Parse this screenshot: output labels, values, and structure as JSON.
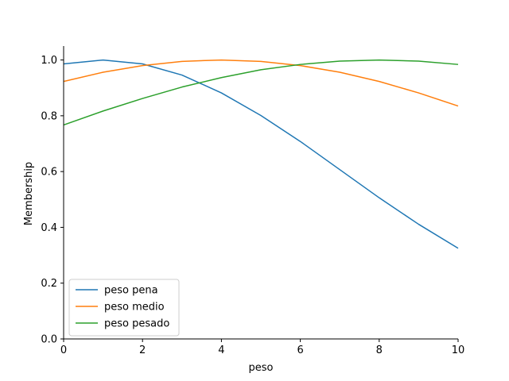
{
  "chart_data": {
    "type": "line",
    "title": "",
    "xlabel": "peso",
    "ylabel": "Membership",
    "xlim": [
      0,
      10
    ],
    "ylim": [
      0,
      1.05
    ],
    "x_ticks": [
      0,
      2,
      4,
      6,
      8,
      10
    ],
    "y_ticks": [
      0.0,
      0.2,
      0.4,
      0.6,
      0.8,
      1.0
    ],
    "x_tick_labels": [
      "0",
      "2",
      "4",
      "6",
      "8",
      "10"
    ],
    "y_tick_labels": [
      "0.0",
      "0.2",
      "0.4",
      "0.6",
      "0.8",
      "1.0"
    ],
    "grid": false,
    "legend_position": "bottom-left",
    "x": [
      0,
      1,
      2,
      3,
      4,
      5,
      6,
      7,
      8,
      9,
      10
    ],
    "series": [
      {
        "name": "peso pena",
        "color": "#1f77b4",
        "values": [
          0.986,
          1.0,
          0.986,
          0.946,
          0.882,
          0.801,
          0.708,
          0.607,
          0.506,
          0.411,
          0.325
        ]
      },
      {
        "name": "peso medio",
        "color": "#ff7f0e",
        "values": [
          0.923,
          0.956,
          0.98,
          0.995,
          1.0,
          0.995,
          0.98,
          0.956,
          0.923,
          0.882,
          0.835
        ]
      },
      {
        "name": "peso pesado",
        "color": "#2ca02c",
        "values": [
          0.767,
          0.817,
          0.862,
          0.903,
          0.937,
          0.965,
          0.984,
          0.996,
          1.0,
          0.996,
          0.984
        ]
      }
    ]
  }
}
